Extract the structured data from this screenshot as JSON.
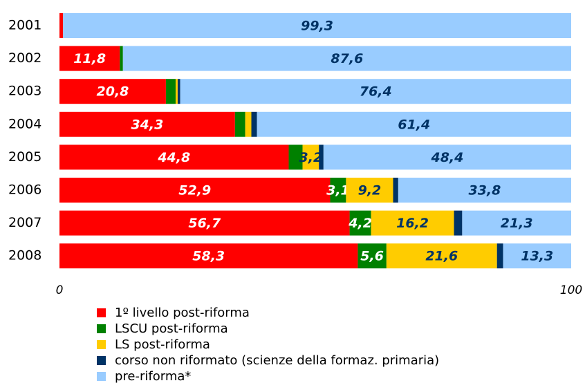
{
  "chart_data": {
    "type": "stacked_barh",
    "categories": [
      "2001",
      "2002",
      "2003",
      "2004",
      "2005",
      "2006",
      "2007",
      "2008"
    ],
    "series": [
      {
        "name": "1º livello post-riforma",
        "color": "#ff0000",
        "values": [
          0.7,
          11.8,
          20.8,
          34.3,
          44.8,
          52.9,
          56.7,
          58.3
        ],
        "value_labels": [
          null,
          "11,8",
          "20,8",
          "34,3",
          "44,8",
          "52,9",
          "56,7",
          "58,3"
        ]
      },
      {
        "name": "LSCU post-riforma",
        "color": "#008000",
        "values": [
          0,
          0.6,
          1.9,
          2.0,
          2.7,
          3.1,
          4.2,
          5.6
        ],
        "value_labels": [
          null,
          null,
          null,
          null,
          null,
          "3,1",
          "4,2",
          "5,6"
        ]
      },
      {
        "name": "LS post-riforma",
        "color": "#ffcc00",
        "values": [
          0,
          0,
          0.4,
          1.2,
          3.2,
          9.2,
          16.2,
          21.6
        ],
        "value_labels": [
          null,
          null,
          null,
          null,
          "3,2",
          "9,2",
          "16,2",
          "21,6"
        ]
      },
      {
        "name": "corso non riformato (scienze della formaz. primaria)",
        "color": "#003366",
        "values": [
          0,
          0,
          0.5,
          1.1,
          0.9,
          1.0,
          1.6,
          1.2
        ],
        "value_labels": [
          null,
          null,
          null,
          null,
          null,
          null,
          null,
          null
        ]
      },
      {
        "name": "pre-riforma*",
        "color": "#99ccff",
        "values": [
          99.3,
          87.6,
          76.4,
          61.4,
          48.4,
          33.8,
          21.3,
          13.3
        ],
        "value_labels": [
          "99,3",
          "87,6",
          "76,4",
          "61,4",
          "48,4",
          "33,8",
          "21,3",
          "13,3"
        ]
      }
    ],
    "xlim": [
      0,
      100
    ],
    "xticks": [
      0,
      100
    ]
  }
}
